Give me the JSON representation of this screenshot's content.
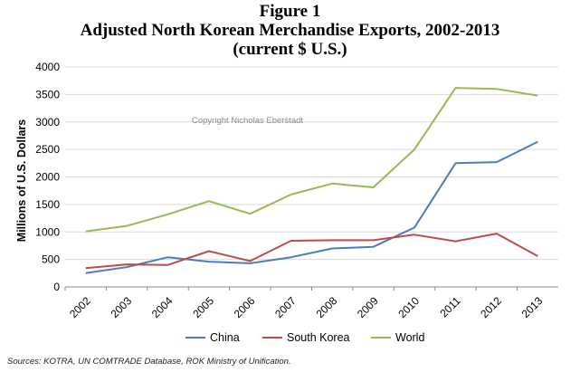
{
  "heading": {
    "figure": "Figure 1",
    "title": "Adjusted North Korean Merchandise Exports, 2002-2013",
    "subtitle": "(current $ U.S.)"
  },
  "watermark": "Copyright Nicholas Eberstadt",
  "source": "Sources: KOTRA, UN COMTRADE Database, ROK Ministry of Unification.",
  "chart_data": {
    "type": "line",
    "title": "Adjusted North Korean Merchandise Exports, 2002-2013",
    "xlabel": "",
    "ylabel": "Millions of U.S. Dollars",
    "ylim": [
      0,
      4000
    ],
    "yticks": [
      "0",
      "500",
      "1000",
      "1500",
      "2000",
      "2500",
      "3000",
      "3500",
      "4000"
    ],
    "grid": true,
    "legend_position": "bottom",
    "categories": [
      "2002",
      "2003",
      "2004",
      "2005",
      "2006",
      "2007",
      "2008",
      "2009",
      "2010",
      "2011",
      "2012",
      "2013"
    ],
    "series": [
      {
        "name": "China",
        "color": "#4a7ebb",
        "values": [
          250,
          360,
          540,
          460,
          430,
          540,
          700,
          730,
          1080,
          2250,
          2270,
          2640
        ]
      },
      {
        "name": "South Korea",
        "color": "#be4b48",
        "values": [
          340,
          410,
          400,
          650,
          470,
          840,
          850,
          850,
          950,
          830,
          970,
          560
        ]
      },
      {
        "name": "World",
        "color": "#98b954",
        "values": [
          1010,
          1110,
          1320,
          1560,
          1330,
          1680,
          1880,
          1810,
          2500,
          3620,
          3600,
          3480
        ]
      }
    ]
  }
}
